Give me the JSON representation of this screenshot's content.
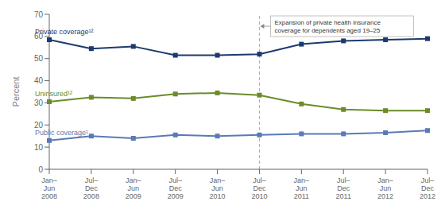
{
  "chart_data": {
    "type": "line",
    "categories": [
      "Jan–\nJun\n2008",
      "Jul–\nDec\n2008",
      "Jan–\nJun\n2009",
      "Jul–\nDec\n2009",
      "Jan–\nJun\n2010",
      "Jul–\nDec\n2010",
      "Jan–\nJun\n2011",
      "Jul–\nDec\n2011",
      "Jan–\nJun\n2012",
      "Jul–\nDec\n2012"
    ],
    "series": [
      {
        "name": "Private coverage¹²",
        "color": "#1c3a6e",
        "values": [
          58.5,
          54.5,
          55.5,
          51.5,
          51.5,
          52.0,
          56.5,
          58.0,
          58.5,
          59.0
        ]
      },
      {
        "name": "Uninsured¹²",
        "color": "#6b8c2a",
        "values": [
          30.5,
          32.5,
          32.0,
          34.0,
          34.5,
          33.5,
          29.5,
          27.0,
          26.5,
          26.5
        ]
      },
      {
        "name": "Public coverage¹",
        "color": "#5a7ab5",
        "values": [
          13.0,
          15.0,
          14.0,
          15.5,
          15.0,
          15.5,
          16.0,
          16.0,
          16.5,
          17.5
        ]
      }
    ],
    "ylim": [
      0,
      70
    ],
    "yticks": [
      0,
      10,
      20,
      30,
      40,
      50,
      60,
      70
    ],
    "ylabel": "Percent",
    "grid": false,
    "marker": "square",
    "annotations": [
      {
        "text": "Expansion of private health insurance\ncoverage for dependents aged 19–25",
        "x": "Jul–\nDec\n2010"
      }
    ]
  }
}
